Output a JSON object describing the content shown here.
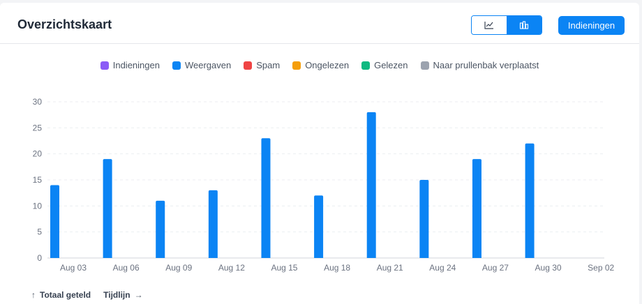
{
  "header": {
    "title": "Overzichtskaart",
    "submissions_button": "Indieningen",
    "view_toggle": {
      "line_icon": "line-chart-icon",
      "bar_icon": "bar-chart-icon",
      "active": "bar"
    }
  },
  "legend": [
    {
      "label": "Indieningen",
      "color": "#8b5cf6"
    },
    {
      "label": "Weergaven",
      "color": "#0b84f4"
    },
    {
      "label": "Spam",
      "color": "#ef4444"
    },
    {
      "label": "Ongelezen",
      "color": "#f59e0b"
    },
    {
      "label": "Gelezen",
      "color": "#10b981"
    },
    {
      "label": "Naar prullenbak verplaatst",
      "color": "#9ca3af"
    }
  ],
  "footer": {
    "total_label": "Totaal geteld",
    "total_icon": "arrow-up-icon",
    "timeline_label": "Tijdlijn",
    "timeline_icon": "arrow-right-icon"
  },
  "chart_data": {
    "type": "bar",
    "categories": [
      "Aug 03",
      "Aug 06",
      "Aug 09",
      "Aug 12",
      "Aug 15",
      "Aug 18",
      "Aug 21",
      "Aug 24",
      "Aug 27",
      "Aug 30",
      "Sep 02"
    ],
    "series": [
      {
        "name": "Weergaven",
        "color": "#0b84f4",
        "values": [
          14,
          19,
          11,
          13,
          23,
          12,
          28,
          15,
          19,
          22,
          0
        ]
      }
    ],
    "ylim": [
      0,
      30
    ],
    "yticks": [
      0,
      5,
      10,
      15,
      20,
      25,
      30
    ],
    "grid": true,
    "legend_position": "top-center"
  }
}
